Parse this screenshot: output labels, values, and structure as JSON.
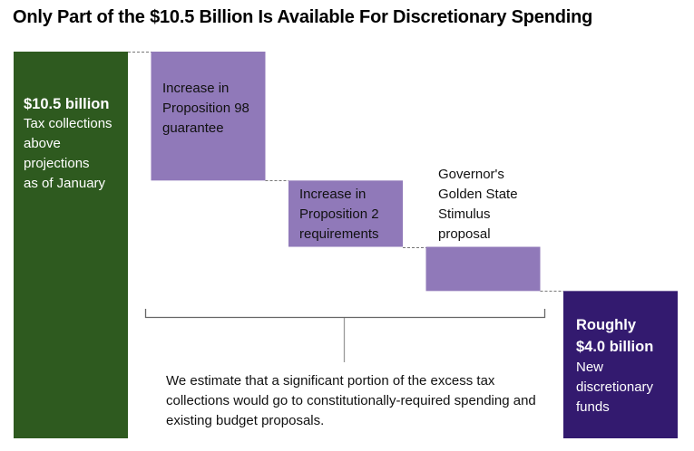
{
  "chart_data": {
    "type": "waterfall",
    "title": "Only Part of the $10.5 Billion Is Available For Discretionary Spending",
    "unit": "billion dollars",
    "bars": [
      {
        "name": "start",
        "value": 10.5,
        "kind": "total",
        "color": "#2e5a1f",
        "label_head": "$10.5 billion",
        "label_lines": [
          "Tax collections",
          "above",
          "projections",
          "as of January"
        ]
      },
      {
        "name": "prop98",
        "value": -3.5,
        "kind": "decrease",
        "color": "#9079b9",
        "label_lines": [
          "Increase in",
          "Proposition 98",
          "guarantee"
        ]
      },
      {
        "name": "prop2",
        "value": -1.8,
        "kind": "decrease",
        "color": "#9079b9",
        "label_lines": [
          "Increase in",
          "Proposition 2",
          "requirements"
        ]
      },
      {
        "name": "stimulus",
        "value": -1.2,
        "kind": "decrease",
        "color": "#9079b9",
        "label_lines": [
          "Governor's",
          "Golden State",
          "Stimulus",
          "proposal"
        ]
      },
      {
        "name": "remaining",
        "value": 4.0,
        "kind": "total",
        "color": "#331a6f",
        "label_head": "Roughly",
        "label_head2": "$4.0 billion",
        "label_lines": [
          "New",
          "discretionary",
          "funds"
        ]
      }
    ],
    "annotation": "We estimate that a significant portion of the excess tax collections would go to constitutionally-required spending and existing budget proposals."
  }
}
